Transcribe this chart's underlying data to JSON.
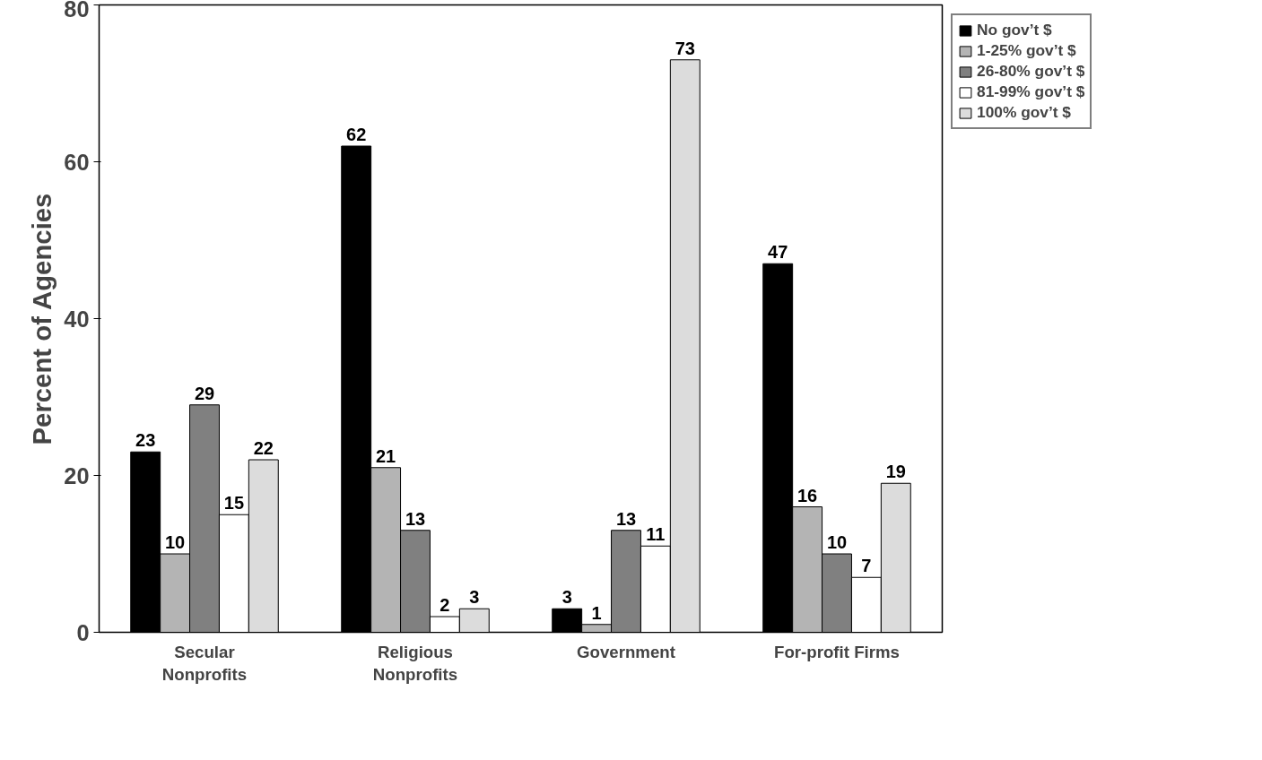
{
  "chart_data": {
    "type": "bar",
    "ylabel": "Percent of Agencies",
    "categories": [
      "Secular Nonprofits",
      "Religious Nonprofits",
      "Government",
      "For-profit Firms"
    ],
    "series": [
      {
        "name": "No gov’t $",
        "color": "#000000",
        "values": [
          23,
          62,
          3,
          47
        ]
      },
      {
        "name": "1-25% gov’t $",
        "color": "#b4b4b4",
        "values": [
          10,
          21,
          1,
          16
        ]
      },
      {
        "name": "26-80% gov’t $",
        "color": "#808080",
        "values": [
          29,
          13,
          13,
          10
        ]
      },
      {
        "name": "81-99% gov’t $",
        "color": "#ffffff",
        "values": [
          15,
          2,
          11,
          7
        ]
      },
      {
        "name": "100% gov’t $",
        "color": "#dcdcdc",
        "values": [
          22,
          3,
          73,
          19
        ]
      }
    ],
    "ylim": [
      0,
      80
    ],
    "yticks": [
      0,
      20,
      40,
      60,
      80
    ],
    "grid": false,
    "legend": "top right",
    "data_labels": true
  }
}
